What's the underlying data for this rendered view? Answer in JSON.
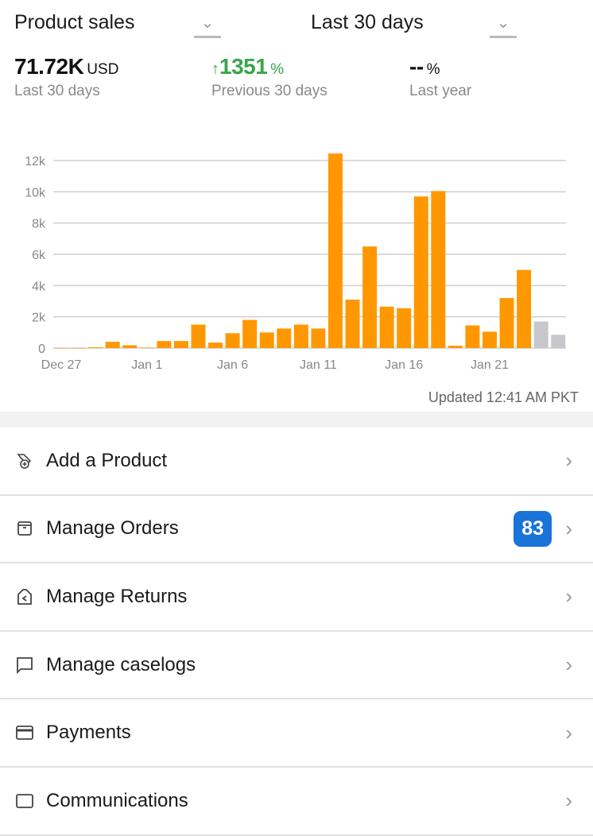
{
  "header": {
    "metric_select": "Product sales",
    "period_select": "Last 30 days"
  },
  "stats": {
    "total": {
      "value": "71.72K",
      "unit": "USD",
      "label": "Last 30 days"
    },
    "previous": {
      "arrow": "↑",
      "value": "1351",
      "unit": "%",
      "label": "Previous 30 days"
    },
    "last_year": {
      "value": "--",
      "unit": "%",
      "label": "Last year"
    }
  },
  "chart_data": {
    "type": "bar",
    "categories": [
      "Dec 27",
      "Dec 28",
      "Dec 29",
      "Dec 30",
      "Dec 31",
      "Jan 1",
      "Jan 2",
      "Jan 3",
      "Jan 4",
      "Jan 5",
      "Jan 6",
      "Jan 7",
      "Jan 8",
      "Jan 9",
      "Jan 10",
      "Jan 11",
      "Jan 12",
      "Jan 13",
      "Jan 14",
      "Jan 15",
      "Jan 16",
      "Jan 17",
      "Jan 18",
      "Jan 19",
      "Jan 20",
      "Jan 21",
      "Jan 22",
      "Jan 23",
      "Jan 24",
      "Jan 25"
    ],
    "values": [
      0,
      0,
      50,
      400,
      180,
      30,
      450,
      450,
      1500,
      350,
      950,
      1800,
      1000,
      1250,
      1500,
      1250,
      12450,
      3100,
      6500,
      2650,
      2550,
      9700,
      10050,
      150,
      1450,
      1050,
      3200,
      5000,
      1700,
      850
    ],
    "pending_from_index": 28,
    "colors": {
      "bar": "#ff9800",
      "pending": "#c8c8cc",
      "grid": "#cfcfcf"
    },
    "x_tick_labels": [
      "Dec 27",
      "Jan 1",
      "Jan 6",
      "Jan 11",
      "Jan 16",
      "Jan 21"
    ],
    "y_ticks": [
      0,
      2000,
      4000,
      6000,
      8000,
      10000,
      12000
    ],
    "y_tick_labels": [
      "0",
      "2k",
      "4k",
      "6k",
      "8k",
      "10k",
      "12k"
    ],
    "ylim": [
      0,
      12000
    ],
    "grid": true
  },
  "updated": "Updated 12:41 AM PKT",
  "menu": [
    {
      "label": "Add a Product",
      "icon": "tag-plus-icon"
    },
    {
      "label": "Manage Orders",
      "icon": "box-icon",
      "badge": "83"
    },
    {
      "label": "Manage Returns",
      "icon": "return-box-icon"
    },
    {
      "label": "Manage caselogs",
      "icon": "chat-bubble-icon"
    },
    {
      "label": "Payments",
      "icon": "card-icon"
    },
    {
      "label": "Communications",
      "icon": "message-icon"
    }
  ]
}
